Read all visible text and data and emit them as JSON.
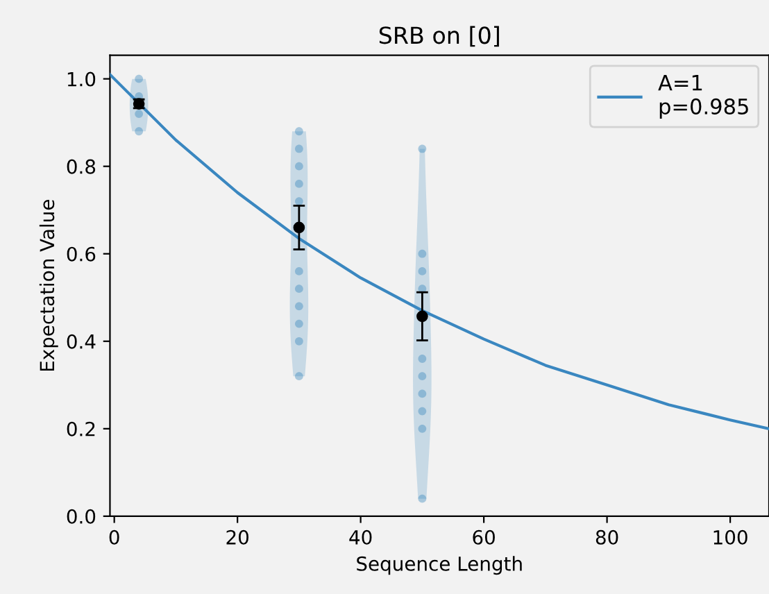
{
  "chart_data": {
    "type": "line",
    "title": "SRB on [0]",
    "xlabel": "Sequence Length",
    "ylabel": "Expectation Value",
    "xlim": [
      -0.7,
      106.3
    ],
    "ylim": [
      0,
      1.054
    ],
    "xticks": [
      0,
      20,
      40,
      60,
      80,
      100
    ],
    "yticks": [
      {
        "value": 0,
        "label": "0.0"
      },
      {
        "value": 0.2,
        "label": "0.2"
      },
      {
        "value": 0.4,
        "label": "0.4"
      },
      {
        "value": 0.6,
        "label": "0.6"
      },
      {
        "value": 0.8,
        "label": "0.8"
      },
      {
        "value": 1,
        "label": "1.0"
      }
    ],
    "grid": false,
    "legend": "top right",
    "series": [
      {
        "type": "scatter",
        "color": "#1f77b4",
        "marker": "circle",
        "x": [
          4,
          4,
          4,
          4,
          30,
          30,
          30,
          30,
          30,
          30,
          30,
          30,
          30,
          30,
          30,
          50,
          50,
          50,
          50,
          50,
          50,
          50,
          50,
          50,
          50
        ],
        "values": [
          1.0,
          0.96,
          0.92,
          0.88,
          0.88,
          0.84,
          0.8,
          0.76,
          0.72,
          0.56,
          0.52,
          0.48,
          0.44,
          0.4,
          0.32,
          0.84,
          0.6,
          0.56,
          0.52,
          0.36,
          0.32,
          0.28,
          0.24,
          0.2,
          0.04
        ]
      },
      {
        "name": "A=1\np=0.985",
        "color": "#3a87c0",
        "line_style": "solid",
        "x": [
          -0.7,
          0,
          10,
          20,
          30,
          40,
          50,
          60,
          70,
          80,
          90,
          100,
          106.3
        ],
        "values": [
          1.01,
          1.0,
          0.86,
          0.74,
          0.635,
          0.545,
          0.47,
          0.405,
          0.345,
          0.3,
          0.255,
          0.22,
          0.2
        ]
      },
      {
        "type": "scatter",
        "color": "#000000",
        "marker": "circle",
        "x": [
          4,
          30,
          50
        ],
        "values": [
          0.943,
          0.66,
          0.457
        ],
        "errors": [
          0.01,
          0.05,
          0.055
        ]
      }
    ]
  }
}
